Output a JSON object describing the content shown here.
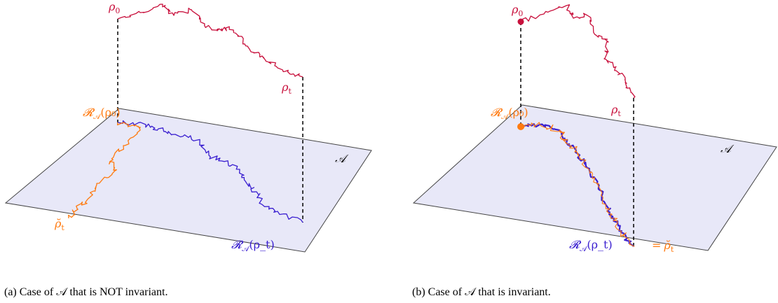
{
  "colors": {
    "plane_fill": "#e8e8f8",
    "plane_stroke": "#444444",
    "rho_path": "#c8103c",
    "projection_path": "#3a1fd0",
    "reduced_path": "#ff7a10",
    "dashed": "#000000"
  },
  "panel_a": {
    "rho0_base": "ρ",
    "rho0_sub": "0",
    "rhot_base": "ρ",
    "rhot_sub": "t",
    "R_rho0": "𝓡",
    "R_rho0_sub": "𝒜",
    "R_rho0_arg": "(ρ₀)",
    "R_rhot": "𝓡",
    "R_rhot_sub": "𝒜",
    "R_rhot_arg": "(ρ_t)",
    "rho_check": "ρ̆",
    "rho_check_sub": "t",
    "plane_label": "𝒜",
    "caption": "(a) Case of 𝒜 that is NOT invariant."
  },
  "panel_b": {
    "rho0_base": "ρ",
    "rho0_sub": "0",
    "rhot_base": "ρ",
    "rhot_sub": "t",
    "R_rho0": "𝓡",
    "R_rho0_sub": "𝒜",
    "R_rho0_arg": "(ρ₀)",
    "R_rhot": "𝓡",
    "R_rhot_sub": "𝒜",
    "R_rhot_arg": "(ρ_t)",
    "equals": "=",
    "rho_check": "ρ̆",
    "rho_check_sub": "t",
    "plane_label": "𝒜",
    "caption": "(b) Case of 𝒜 that is invariant."
  }
}
